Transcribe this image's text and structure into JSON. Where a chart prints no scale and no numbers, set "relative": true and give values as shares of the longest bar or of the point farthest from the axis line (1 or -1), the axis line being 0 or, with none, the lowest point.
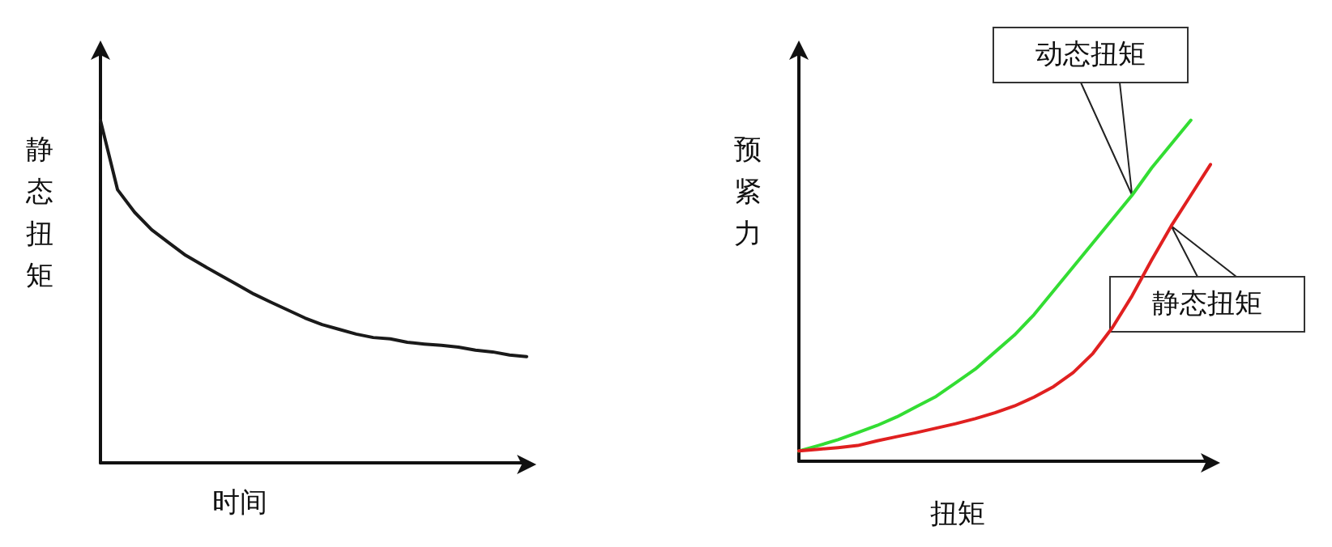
{
  "chart_data": [
    {
      "type": "line",
      "relative": true,
      "xlabel": "时间",
      "ylabel": "静态扭矩",
      "marker": "none",
      "line_style": "solid",
      "categories": [
        null,
        null,
        null,
        null,
        null,
        null,
        null,
        null,
        null,
        null,
        null,
        null,
        null,
        null,
        null,
        null,
        null,
        null,
        null,
        null,
        null,
        null,
        null,
        null,
        null,
        null
      ],
      "series": [
        {
          "color": "#1a1a1a",
          "values": [
            1,
            0.798,
            0.732,
            0.681,
            0.643,
            0.606,
            0.577,
            0.549,
            0.521,
            0.493,
            0.469,
            0.446,
            0.423,
            0.404,
            0.39,
            0.376,
            0.366,
            0.362,
            0.352,
            0.347,
            0.343,
            0.338,
            0.329,
            0.324,
            0.315,
            0.31
          ]
        }
      ]
    },
    {
      "type": "line",
      "relative": true,
      "xlabel": "扭矩",
      "ylabel": "预紧力",
      "marker": "none",
      "line_style": "solid",
      "categories": [
        null,
        null,
        null,
        null,
        null,
        null,
        null,
        null,
        null,
        null,
        null,
        null,
        null,
        null,
        null,
        null,
        null,
        null,
        null,
        null,
        null,
        null
      ],
      "series": [
        {
          "name": "动态扭矩",
          "color": "#33dd33",
          "values": [
            0.03,
            0.046,
            0.063,
            0.084,
            0.105,
            0.13,
            0.16,
            0.19,
            0.23,
            0.27,
            0.32,
            0.37,
            0.43,
            0.5,
            0.57,
            0.64,
            0.71,
            0.78,
            0.86,
            0.93,
            1,
            null
          ]
        },
        {
          "name": "静态扭矩",
          "color": "#e02020",
          "values": [
            0.03,
            0.035,
            0.04,
            0.046,
            0.06,
            0.072,
            0.084,
            0.097,
            0.11,
            0.125,
            0.142,
            0.162,
            0.188,
            0.219,
            0.26,
            0.316,
            0.392,
            0.485,
            0.59,
            0.69,
            0.78,
            0.87
          ]
        }
      ]
    }
  ]
}
